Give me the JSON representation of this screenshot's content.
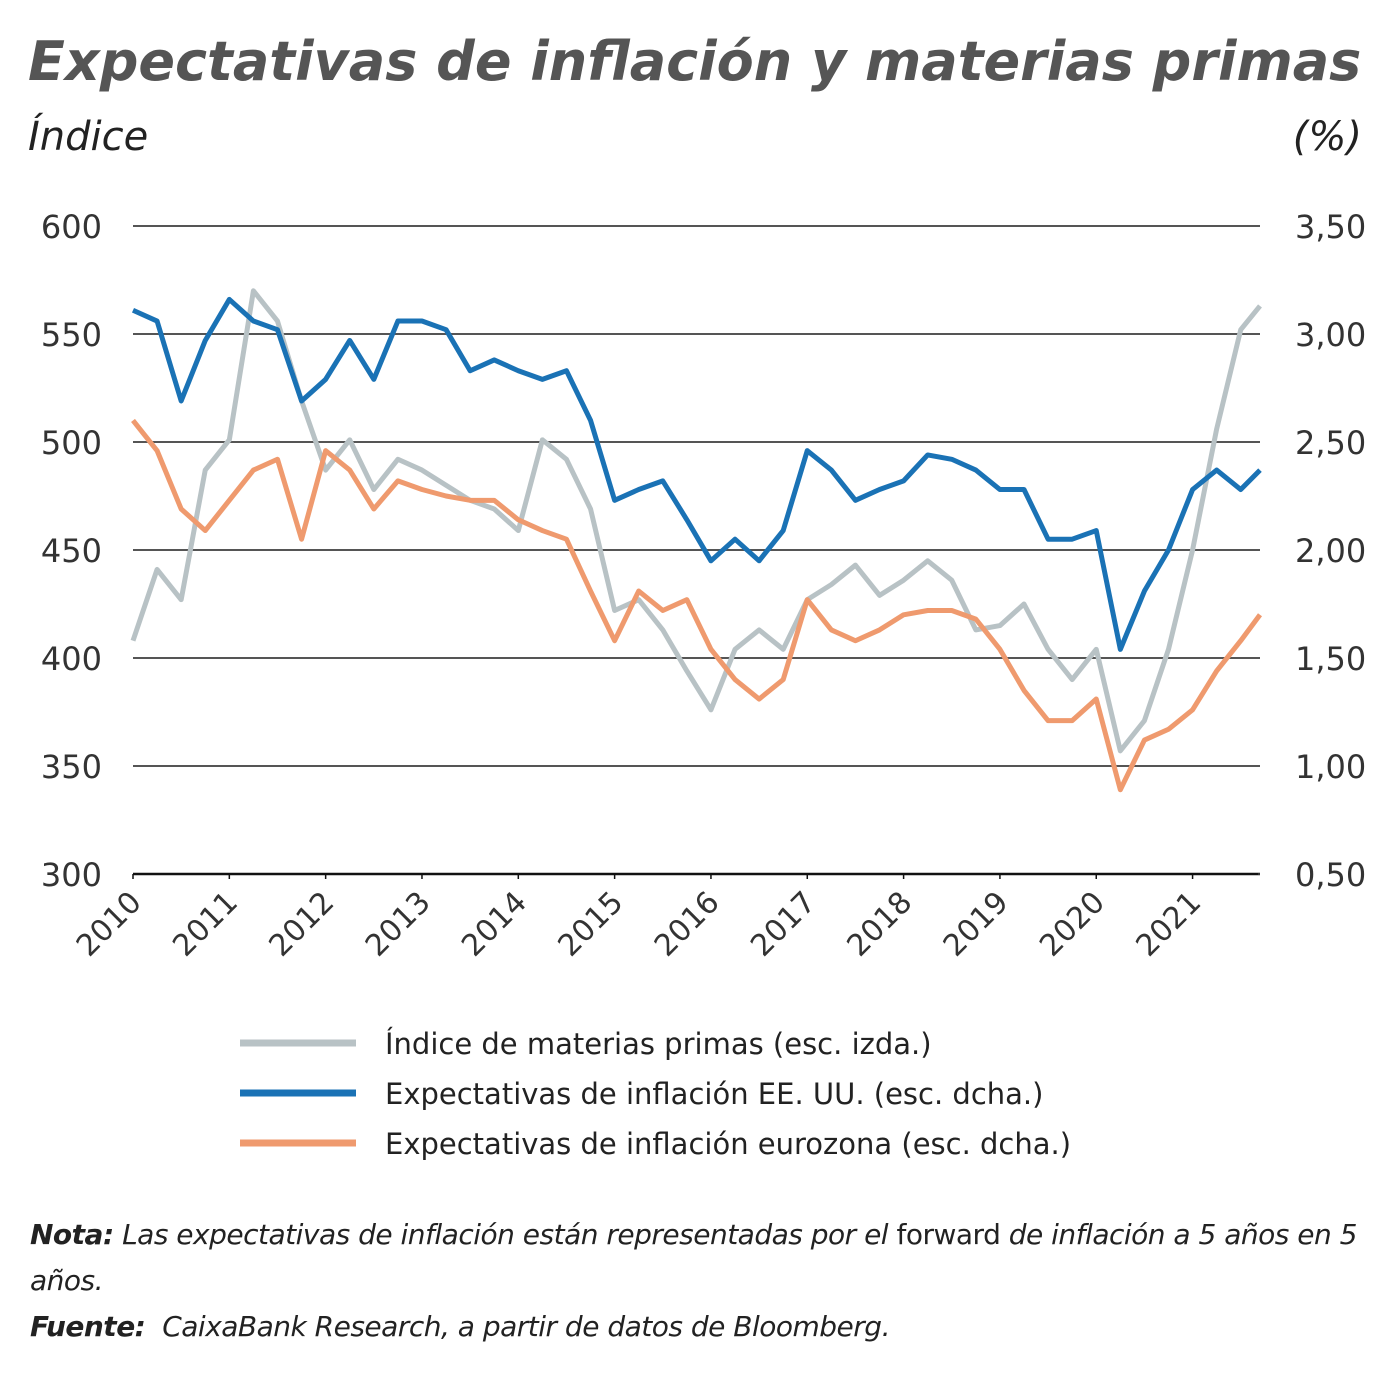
{
  "chart_data": {
    "type": "line",
    "title": "Expectativas de inflación y materias primas",
    "y_label": "Índice",
    "y2_label": "(%)",
    "x": [
      2010.0,
      2010.25,
      2010.5,
      2010.75,
      2011.0,
      2011.25,
      2011.5,
      2011.75,
      2012.0,
      2012.25,
      2012.5,
      2012.75,
      2013.0,
      2013.25,
      2013.5,
      2013.75,
      2014.0,
      2014.25,
      2014.5,
      2014.75,
      2015.0,
      2015.25,
      2015.5,
      2015.75,
      2016.0,
      2016.25,
      2016.5,
      2016.75,
      2017.0,
      2017.25,
      2017.5,
      2017.75,
      2018.0,
      2018.25,
      2018.5,
      2018.75,
      2019.0,
      2019.25,
      2019.5,
      2019.75,
      2020.0,
      2020.25,
      2020.5,
      2020.75,
      2021.0,
      2021.25,
      2021.5,
      2021.7
    ],
    "series": [
      {
        "name": "Índice de materias primas (esc. izda.)",
        "color": "#b8c2c5",
        "axis": "y",
        "values": [
          408,
          441,
          427,
          487,
          501,
          570,
          556,
          519,
          487,
          501,
          478,
          492,
          487,
          480,
          473,
          469,
          459,
          501,
          492,
          469,
          422,
          427,
          413,
          394,
          376,
          404,
          413,
          404,
          427,
          434,
          443,
          429,
          436,
          445,
          436,
          413,
          415,
          425,
          404,
          390,
          404,
          357,
          371,
          404,
          450,
          506,
          552,
          563
        ]
      },
      {
        "name": "Expectativas de inflación EE. UU. (esc. dcha.)",
        "color": "#1a72b5",
        "axis": "y2",
        "values": [
          3.11,
          3.06,
          2.69,
          2.97,
          3.16,
          3.06,
          3.02,
          2.69,
          2.79,
          2.97,
          2.79,
          3.06,
          3.06,
          3.02,
          2.83,
          2.88,
          2.83,
          2.79,
          2.83,
          2.6,
          2.23,
          2.28,
          2.32,
          2.14,
          1.95,
          2.05,
          1.95,
          2.09,
          2.46,
          2.37,
          2.23,
          2.28,
          2.32,
          2.44,
          2.42,
          2.37,
          2.28,
          2.28,
          2.05,
          2.05,
          2.09,
          1.54,
          1.81,
          2.0,
          2.28,
          2.37,
          2.28,
          2.37
        ]
      },
      {
        "name": "Expectativas de inflación eurozona (esc. dcha.)",
        "color": "#ef9a6e",
        "axis": "y2",
        "values": [
          2.6,
          2.46,
          2.19,
          2.09,
          2.23,
          2.37,
          2.42,
          2.05,
          2.46,
          2.37,
          2.19,
          2.32,
          2.28,
          2.25,
          2.23,
          2.23,
          2.14,
          2.09,
          2.05,
          1.81,
          1.58,
          1.81,
          1.72,
          1.77,
          1.54,
          1.4,
          1.31,
          1.4,
          1.77,
          1.63,
          1.58,
          1.63,
          1.7,
          1.72,
          1.72,
          1.68,
          1.54,
          1.35,
          1.21,
          1.21,
          1.31,
          0.89,
          1.12,
          1.17,
          1.26,
          1.44,
          1.58,
          1.7
        ]
      }
    ],
    "xlim": [
      2010,
      2021.7
    ],
    "xticks": [
      2010,
      2011,
      2012,
      2013,
      2014,
      2015,
      2016,
      2017,
      2018,
      2019,
      2020,
      2021
    ],
    "ylim": [
      300,
      600
    ],
    "yticks": [
      300,
      350,
      400,
      450,
      500,
      550,
      600
    ],
    "y2lim": [
      0.5,
      3.5
    ],
    "y2ticks": [
      {
        "value": 0.5,
        "label": "0,50"
      },
      {
        "value": 1,
        "label": "1,00"
      },
      {
        "value": 1.5,
        "label": "1,50"
      },
      {
        "value": 2,
        "label": "2,00"
      },
      {
        "value": 2.5,
        "label": "2,50"
      },
      {
        "value": 3,
        "label": "3,00"
      },
      {
        "value": 3.5,
        "label": "3,50"
      }
    ],
    "grid": true,
    "legend": "bottom",
    "note": {
      "label": "Nota:",
      "text1": "Las expectativas de inflación están representadas por el",
      "text2": "forward",
      "text3": "de inflación a 5 años en 5 años."
    },
    "source": {
      "label": "Fuente:",
      "text": "CaixaBank Research, a partir de datos de Bloomberg."
    }
  }
}
